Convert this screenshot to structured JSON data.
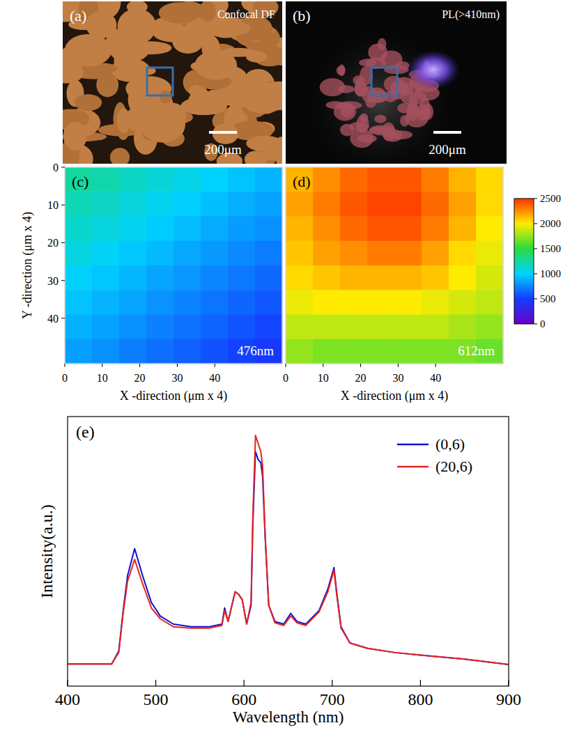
{
  "images": [
    {
      "label": "(a)",
      "title": "Confocal DF",
      "scale_bar": "200μm"
    },
    {
      "label": "(b)",
      "title": "PL(>410nm)",
      "scale_bar": "200μm"
    }
  ],
  "chart_data": [
    {
      "type": "heatmap",
      "label": "(c)",
      "annotation": "476nm",
      "xlabel": "X -direction (μm x 4)",
      "ylabel": "Y -direction (μm x 4)",
      "xlim": [
        0,
        58
      ],
      "ylim": [
        0,
        52
      ],
      "xticks": [
        0,
        10,
        20,
        30,
        40
      ],
      "yticks": [
        0,
        10,
        20,
        30,
        40
      ],
      "cells": [
        [
          1250,
          1210,
          1150,
          1100,
          1060,
          1000,
          950,
          900
        ],
        [
          1190,
          1150,
          1090,
          1040,
          990,
          940,
          880,
          840
        ],
        [
          1130,
          1090,
          1040,
          980,
          930,
          870,
          820,
          780
        ],
        [
          1080,
          1020,
          970,
          920,
          860,
          810,
          760,
          710
        ],
        [
          1010,
          960,
          910,
          850,
          800,
          750,
          700,
          650
        ],
        [
          950,
          900,
          850,
          790,
          740,
          690,
          640,
          590
        ],
        [
          890,
          840,
          780,
          730,
          680,
          630,
          580,
          530
        ],
        [
          830,
          780,
          720,
          670,
          620,
          570,
          520,
          470
        ]
      ]
    },
    {
      "type": "heatmap",
      "label": "(d)",
      "annotation": "612nm",
      "xlabel": "X -direction (μm x 4)",
      "xlim": [
        0,
        58
      ],
      "ylim": [
        0,
        52
      ],
      "xticks": [
        0,
        10,
        20,
        30,
        40
      ],
      "tick_labels": "x",
      "cells": [
        [
          2150,
          2250,
          2350,
          2400,
          2400,
          2300,
          2150,
          2050
        ],
        [
          2200,
          2300,
          2400,
          2450,
          2450,
          2350,
          2200,
          2050
        ],
        [
          2150,
          2250,
          2350,
          2400,
          2400,
          2300,
          2150,
          2000
        ],
        [
          2100,
          2200,
          2250,
          2300,
          2300,
          2200,
          2050,
          1950
        ],
        [
          2050,
          2100,
          2150,
          2150,
          2150,
          2100,
          2000,
          1900
        ],
        [
          1950,
          2000,
          2000,
          2000,
          2000,
          1950,
          1900,
          1850
        ],
        [
          1850,
          1850,
          1850,
          1850,
          1850,
          1850,
          1800,
          1750
        ],
        [
          1750,
          1700,
          1700,
          1700,
          1700,
          1700,
          1700,
          1650
        ]
      ],
      "color_range": [
        0,
        2500
      ],
      "color_ticks": [
        0,
        500,
        1000,
        1500,
        2000,
        2500
      ]
    },
    {
      "type": "line",
      "label": "(e)",
      "xlabel": "Wavelength (nm)",
      "ylabel": "Intensity(a.u.)",
      "x": [
        400,
        450,
        458,
        463,
        468,
        476,
        485,
        495,
        505,
        520,
        540,
        560,
        575,
        578,
        582,
        587,
        590,
        594,
        598,
        603,
        608,
        610,
        613,
        616,
        619,
        621,
        624,
        628,
        635,
        645,
        653,
        660,
        670,
        685,
        695,
        702,
        705,
        710,
        720,
        740,
        770,
        800,
        850,
        900
      ],
      "series": [
        {
          "name": "(0,6)",
          "color": "#1010d0",
          "values": [
            8.2,
            8.2,
            13,
            28,
            41,
            51,
            41,
            31,
            26,
            23,
            22,
            22,
            23,
            29,
            24,
            31,
            35,
            34,
            32,
            23,
            30,
            60,
            87,
            84,
            83,
            78,
            55,
            30,
            24,
            23,
            27,
            24,
            23,
            28,
            36,
            44,
            35,
            22,
            16,
            14,
            12.5,
            11.5,
            10,
            8
          ]
        },
        {
          "name": "(20,6)",
          "color": "#e8231f",
          "values": [
            8.2,
            8.2,
            12.5,
            27,
            39,
            47,
            38,
            29,
            25,
            22,
            21.5,
            21.5,
            22.5,
            28,
            24,
            31,
            35,
            34,
            32,
            23,
            31,
            63,
            93,
            90,
            87,
            82,
            56,
            30,
            23.5,
            22.5,
            26,
            23.5,
            22.5,
            27.5,
            35,
            43,
            34,
            21.5,
            16,
            14,
            12.5,
            11.5,
            10,
            8
          ]
        }
      ],
      "xlim": [
        400,
        900
      ],
      "ylim": [
        0,
        100
      ],
      "xticks": [
        400,
        500,
        600,
        700,
        800,
        900
      ],
      "tick_labels": "x",
      "legend": "top-right",
      "grid": false
    }
  ]
}
